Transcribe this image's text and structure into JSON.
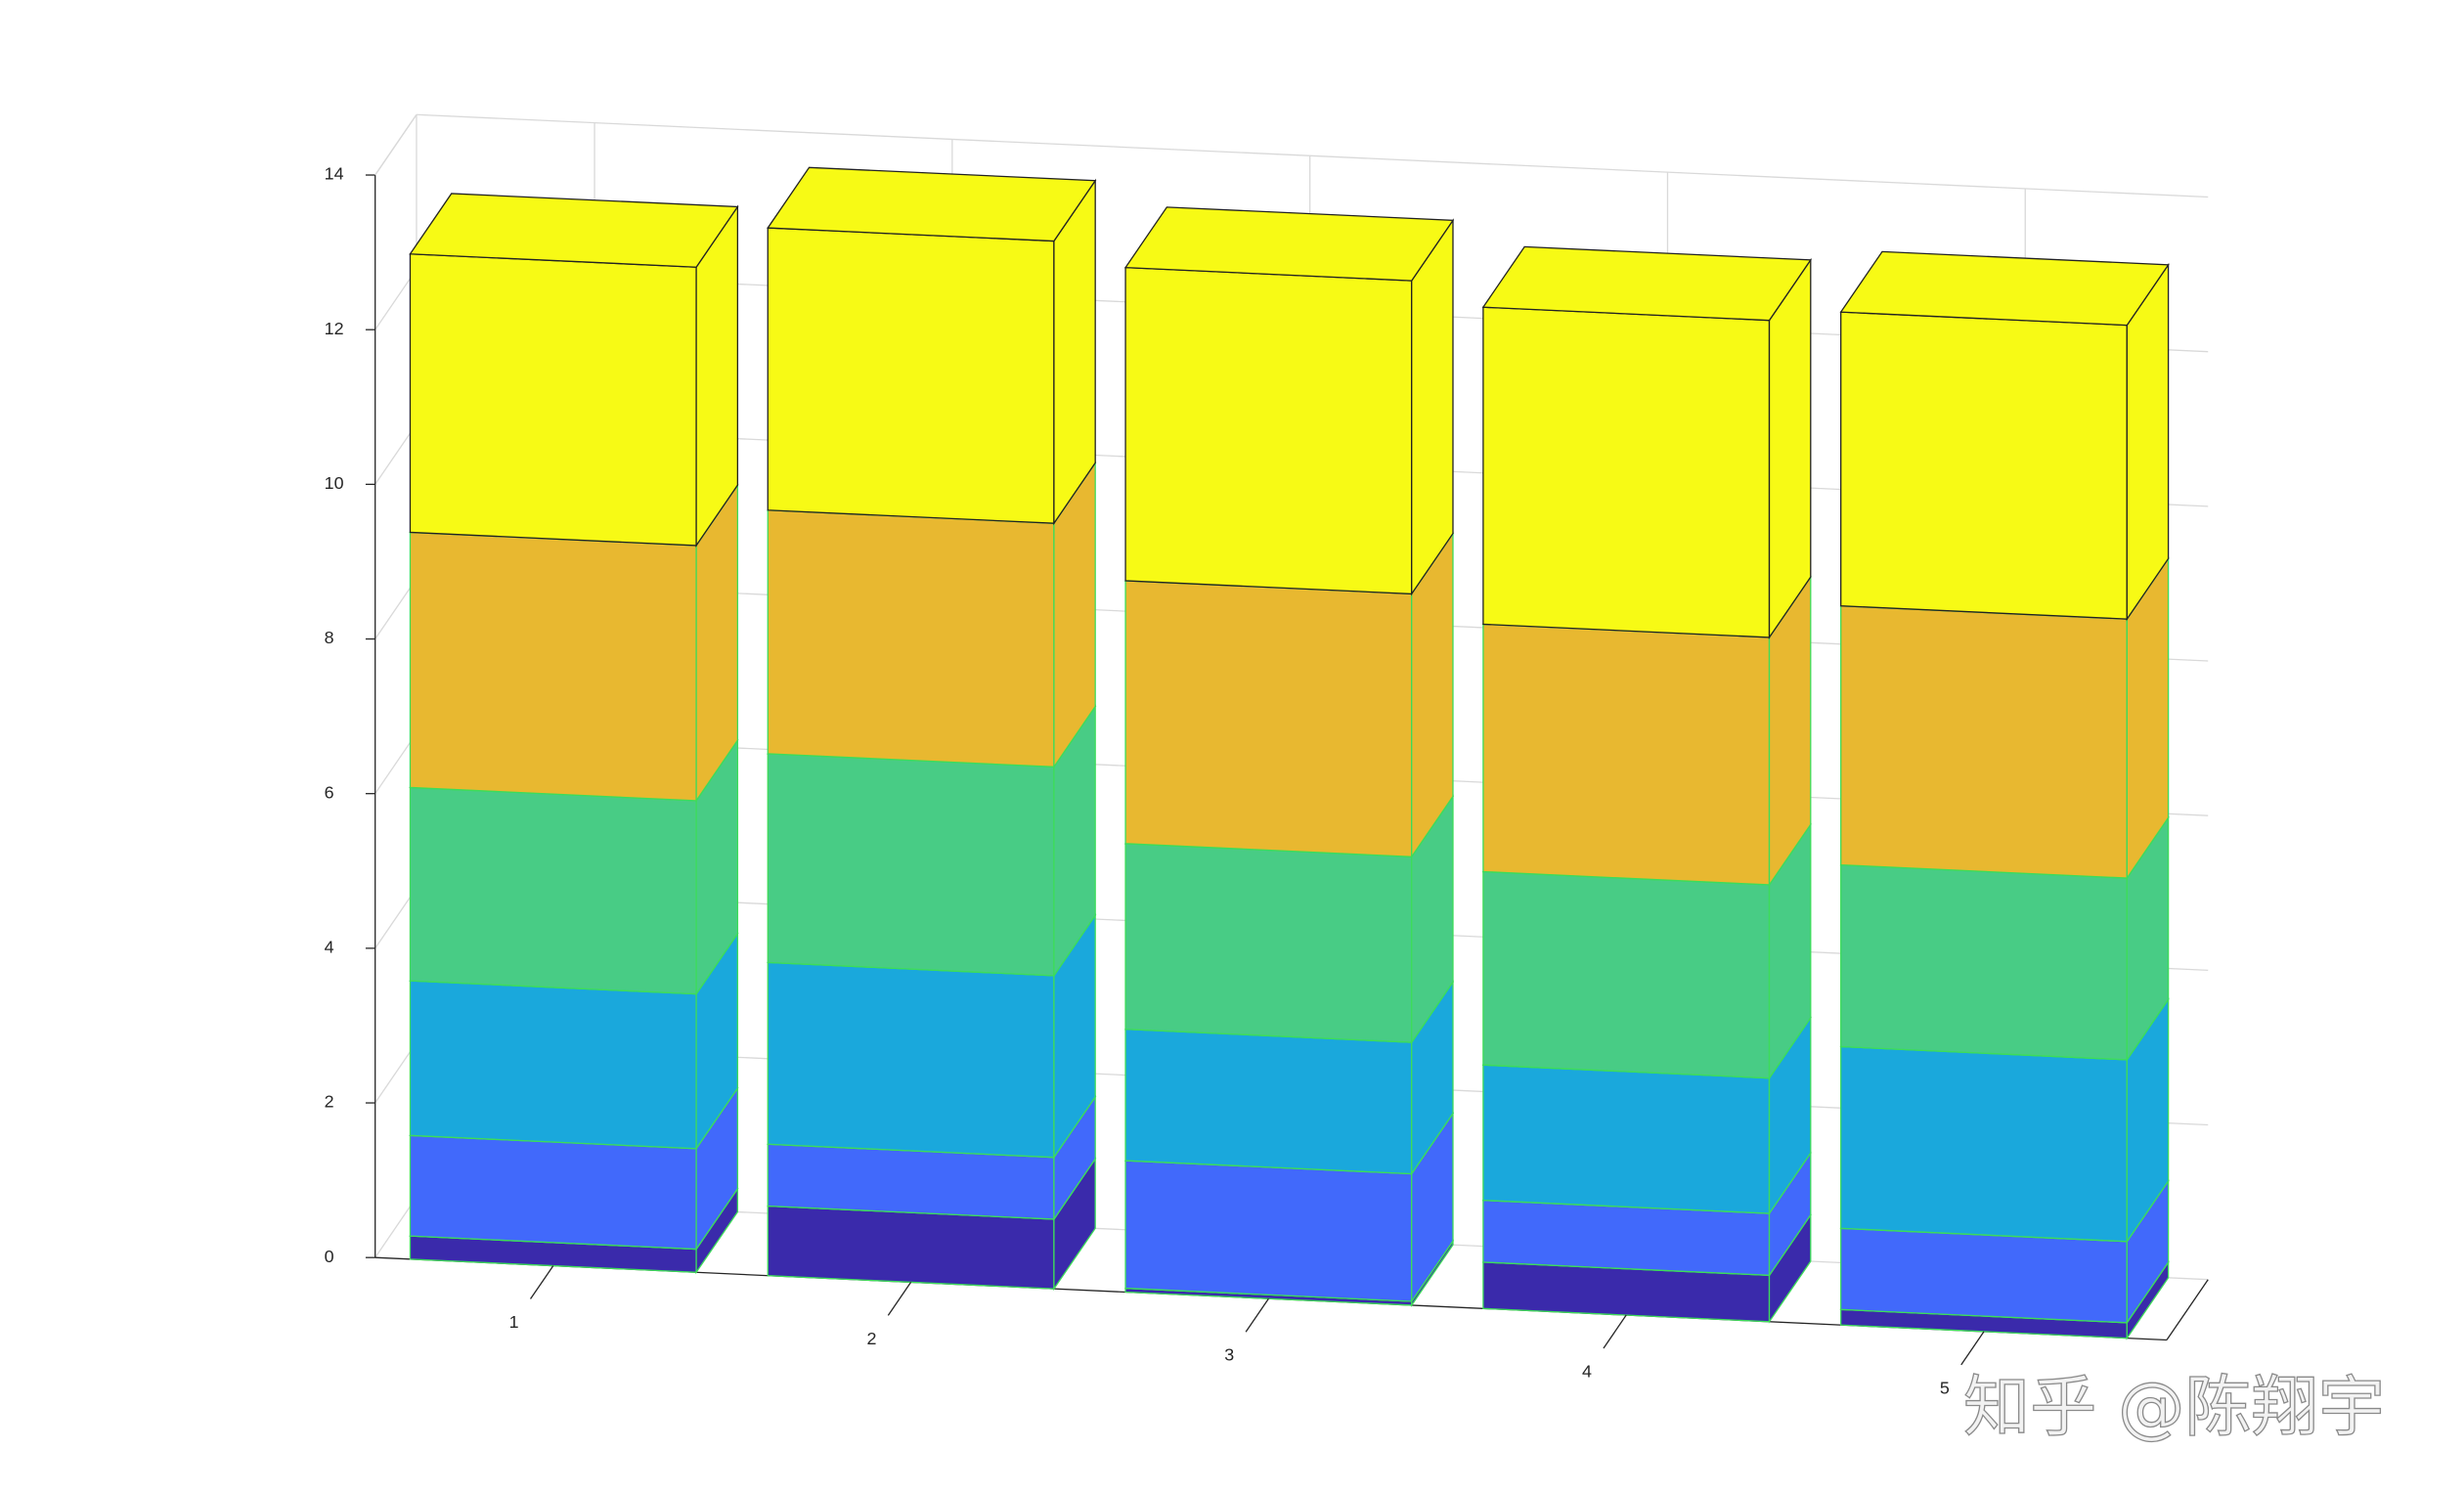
{
  "chart_data": {
    "type": "bar3-stacked",
    "categories": [
      "1",
      "2",
      "3",
      "4",
      "5"
    ],
    "series": [
      {
        "color": "#3a2aab",
        "values": [
          0.3,
          0.9,
          0.05,
          0.6,
          0.2
        ]
      },
      {
        "color": "#4169fb",
        "values": [
          1.3,
          0.8,
          1.65,
          0.8,
          1.05
        ]
      },
      {
        "color": "#1aa8dc",
        "values": [
          2.0,
          2.35,
          1.7,
          1.75,
          2.35
        ]
      },
      {
        "color": "#48cc85",
        "values": [
          2.5,
          2.7,
          2.4,
          2.5,
          2.35
        ]
      },
      {
        "color": "#e8b830",
        "values": [
          3.3,
          3.15,
          3.4,
          3.2,
          3.35
        ]
      },
      {
        "color": "#f7fa15",
        "values": [
          3.6,
          3.65,
          4.05,
          4.1,
          3.8
        ]
      }
    ],
    "ylim": [
      0,
      14
    ],
    "yticks": [
      0,
      2,
      4,
      6,
      8,
      10,
      12,
      14
    ],
    "grid": true,
    "watermark": "知乎 @陈翔宇"
  }
}
